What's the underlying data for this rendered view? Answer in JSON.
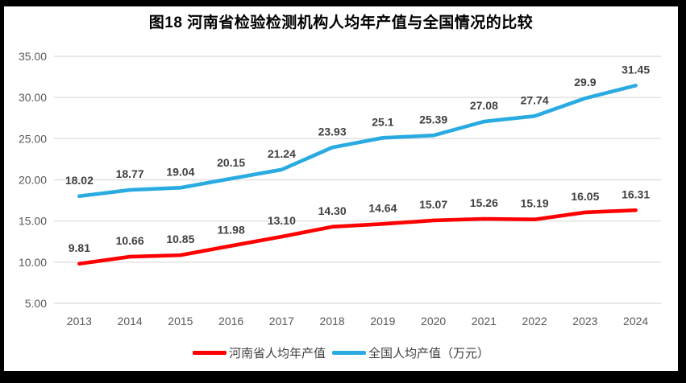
{
  "chart_data": {
    "type": "line",
    "title": "图18  河南省检验检测机构人均年产值与全国情况的比较",
    "categories": [
      "2013",
      "2014",
      "2015",
      "2016",
      "2017",
      "2018",
      "2019",
      "2020",
      "2021",
      "2022",
      "2023",
      "2024"
    ],
    "series": [
      {
        "name": "河南省人均年产值",
        "color": "#FE0000",
        "values": [
          9.81,
          10.66,
          10.85,
          11.98,
          13.1,
          14.3,
          14.64,
          15.07,
          15.26,
          15.19,
          16.05,
          16.31
        ],
        "labels": [
          "9.81",
          "10.66",
          "10.85",
          "11.98",
          "13.10",
          "14.30",
          "14.64",
          "15.07",
          "15.26",
          "15.19",
          "16.05",
          "16.31"
        ]
      },
      {
        "name": "全国人均产值（万元）",
        "color": "#29ABE2",
        "values": [
          18.02,
          18.77,
          19.04,
          20.15,
          21.24,
          23.93,
          25.1,
          25.39,
          27.08,
          27.74,
          29.9,
          31.45
        ],
        "labels": [
          "18.02",
          "18.77",
          "19.04",
          "20.15",
          "21.24",
          "23.93",
          "25.1",
          "25.39",
          "27.08",
          "27.74",
          "29.9",
          "31.45"
        ]
      }
    ],
    "xlabel": "",
    "ylabel": "",
    "ylim": [
      5,
      35
    ],
    "ytick_step": 5,
    "ytick_labels": [
      "5.00",
      "10.00",
      "15.00",
      "20.00",
      "25.00",
      "30.00",
      "35.00"
    ],
    "grid": true,
    "legend_position": "bottom",
    "colors": {
      "gridline": "#DFDFDF",
      "axis_text": "#595959",
      "data_label_text": "#404040",
      "frame_border": "#000000",
      "background": "#FFFFFF"
    }
  }
}
